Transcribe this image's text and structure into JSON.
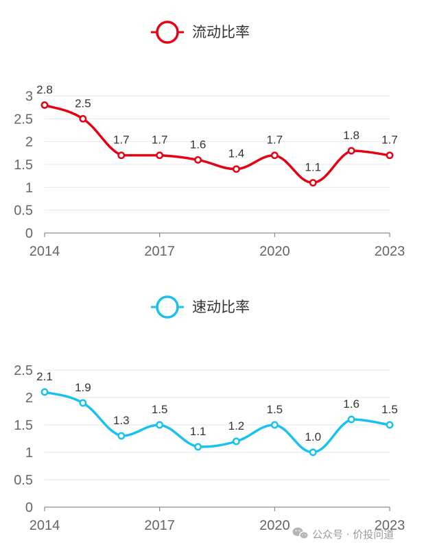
{
  "chart_data": [
    {
      "type": "line",
      "title": "",
      "legend": "流动比率",
      "color": "#e60012",
      "x": [
        "2014",
        "2015",
        "2016",
        "2017",
        "2018",
        "2019",
        "2020",
        "2021",
        "2022",
        "2023"
      ],
      "values": [
        2.8,
        2.5,
        1.7,
        1.7,
        1.6,
        1.4,
        1.7,
        1.1,
        1.8,
        1.7
      ],
      "data_labels": [
        "2.8",
        "2.5",
        "1.7",
        "1.7",
        "1.6",
        "1.4",
        "1.7",
        "1.1",
        "1.8",
        "1.7"
      ],
      "x_ticks": [
        "2014",
        "2017",
        "2020",
        "2023"
      ],
      "y_ticks": [
        "0",
        "0.5",
        "1",
        "1.5",
        "2",
        "2.5",
        "3"
      ],
      "ylim": [
        0,
        3
      ],
      "grid": true,
      "legend_position": "top-center"
    },
    {
      "type": "line",
      "title": "",
      "legend": "速动比率",
      "color": "#17c3ee",
      "x": [
        "2014",
        "2015",
        "2016",
        "2017",
        "2018",
        "2019",
        "2020",
        "2021",
        "2022",
        "2023"
      ],
      "values": [
        2.1,
        1.9,
        1.3,
        1.5,
        1.1,
        1.2,
        1.5,
        1.0,
        1.6,
        1.5
      ],
      "data_labels": [
        "2.1",
        "1.9",
        "1.3",
        "1.5",
        "1.1",
        "1.2",
        "1.5",
        "1.0",
        "1.6",
        "1.5"
      ],
      "x_ticks": [
        "2014",
        "2017",
        "2020",
        "2023"
      ],
      "y_ticks": [
        "0",
        "0.5",
        "1",
        "1.5",
        "2",
        "2.5"
      ],
      "ylim": [
        0,
        2.5
      ],
      "grid": true,
      "legend_position": "top-center"
    }
  ],
  "watermark": {
    "text": "公众号 · 价投问道",
    "icon": "wechat-icon"
  }
}
